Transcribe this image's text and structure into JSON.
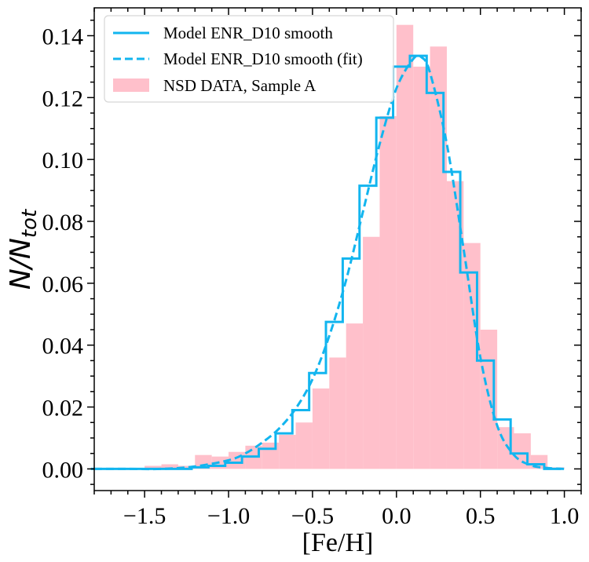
{
  "chart_data": {
    "type": "bar",
    "xlabel": "[Fe/H]",
    "ylabel_main": "N/N",
    "ylabel_sub": "tot",
    "xlim": [
      -1.8,
      1.1
    ],
    "ylim": [
      -0.007,
      0.149
    ],
    "xticks": [
      -1.5,
      -1.0,
      -0.5,
      0.0,
      0.5,
      1.0
    ],
    "xtick_labels": [
      "−1.5",
      "−1.0",
      "−0.5",
      "0.0",
      "0.5",
      "1.0"
    ],
    "yticks": [
      0.0,
      0.02,
      0.04,
      0.06,
      0.08,
      0.1,
      0.12,
      0.14
    ],
    "ytick_labels": [
      "0.00",
      "0.02",
      "0.04",
      "0.06",
      "0.08",
      "0.10",
      "0.12",
      "0.14"
    ],
    "legend_position": "top-left",
    "colors": {
      "model": "#12b5ef",
      "data": "#ffc0cb"
    },
    "legend": [
      {
        "label": "Model ENR_D10 smooth",
        "style": "solid"
      },
      {
        "label": "Model ENR_D10 smooth (fit)",
        "style": "dashed"
      },
      {
        "label": "NSD DATA, Sample A",
        "style": "patch"
      }
    ],
    "data_histogram": {
      "name": "NSD DATA, Sample A",
      "bin_edges": [
        -1.8,
        -1.7,
        -1.6,
        -1.5,
        -1.4,
        -1.3,
        -1.2,
        -1.1,
        -1.0,
        -0.9,
        -0.8,
        -0.7,
        -0.6,
        -0.5,
        -0.4,
        -0.3,
        -0.2,
        -0.1,
        0.0,
        0.1,
        0.2,
        0.3,
        0.4,
        0.5,
        0.6,
        0.7,
        0.8,
        0.9,
        1.0
      ],
      "values": [
        0.0,
        0.0,
        0.0,
        0.001,
        0.0015,
        0.001,
        0.0045,
        0.004,
        0.0055,
        0.0075,
        0.0085,
        0.011,
        0.015,
        0.026,
        0.036,
        0.047,
        0.075,
        0.114,
        0.1435,
        0.13,
        0.1365,
        0.093,
        0.073,
        0.045,
        0.0135,
        0.0115,
        0.0045,
        0.0005
      ]
    },
    "model_histogram": {
      "name": "Model ENR_D10 smooth",
      "bin_edges": [
        -1.82,
        -1.72,
        -1.62,
        -1.52,
        -1.42,
        -1.32,
        -1.22,
        -1.12,
        -1.02,
        -0.92,
        -0.82,
        -0.72,
        -0.62,
        -0.52,
        -0.42,
        -0.32,
        -0.22,
        -0.12,
        -0.02,
        0.08,
        0.18,
        0.28,
        0.38,
        0.48,
        0.58,
        0.68,
        0.78,
        0.88,
        0.98
      ],
      "values": [
        0.0,
        0.0,
        0.0,
        0.0,
        0.0,
        0.0,
        0.0005,
        0.001,
        0.002,
        0.004,
        0.0065,
        0.0115,
        0.019,
        0.031,
        0.0475,
        0.068,
        0.0915,
        0.1135,
        0.13,
        0.1335,
        0.1215,
        0.096,
        0.0635,
        0.035,
        0.016,
        0.005,
        0.0015,
        0.0
      ]
    },
    "model_fit": {
      "name": "Model ENR_D10 smooth (fit)",
      "x": [
        -1.8,
        -1.6,
        -1.4,
        -1.2,
        -1.0,
        -0.9,
        -0.8,
        -0.7,
        -0.6,
        -0.5,
        -0.4,
        -0.3,
        -0.2,
        -0.1,
        0.0,
        0.1,
        0.15,
        0.2,
        0.3,
        0.4,
        0.5,
        0.6,
        0.7,
        0.8,
        0.9,
        1.0
      ],
      "y": [
        0.0,
        0.0,
        0.0,
        0.0008,
        0.0028,
        0.005,
        0.0085,
        0.013,
        0.0195,
        0.029,
        0.043,
        0.061,
        0.083,
        0.105,
        0.123,
        0.1325,
        0.133,
        0.128,
        0.105,
        0.071,
        0.036,
        0.014,
        0.0045,
        0.0012,
        0.0003,
        0.0
      ]
    }
  }
}
